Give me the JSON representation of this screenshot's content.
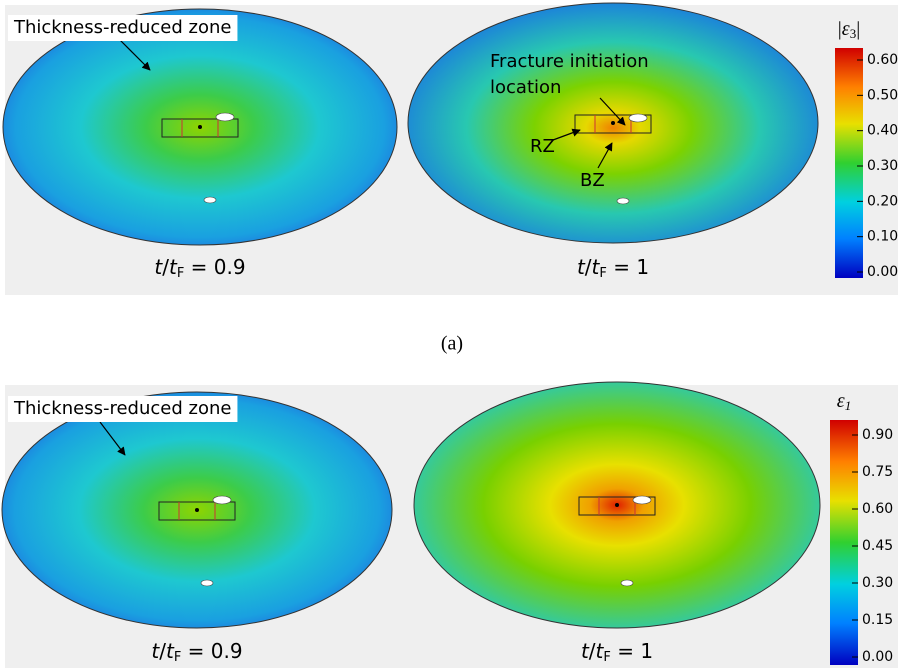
{
  "panels": [
    {
      "label": "(a)",
      "annotations": [
        "Thickness-reduced zone",
        "Fracture initiation",
        "location",
        "RZ",
        "BZ"
      ],
      "maps": [
        {
          "caption": [
            "t",
            "/",
            "t",
            "F",
            " = 0.9"
          ]
        },
        {
          "caption": [
            "t",
            "/",
            "t",
            "F",
            " = 1"
          ]
        }
      ],
      "colorbar": {
        "symbol": [
          "|",
          "ε",
          "3",
          "|"
        ],
        "ticks": [
          "0.60",
          "0.50",
          "0.40",
          "0.30",
          "0.20",
          "0.10",
          "0.00"
        ]
      }
    },
    {
      "annotations": [
        "Thickness-reduced zone"
      ],
      "maps": [
        {
          "caption": [
            "t",
            "/",
            "t",
            "F",
            " = 0.9"
          ]
        },
        {
          "caption": [
            "t",
            "/",
            "t",
            "F",
            " = 1"
          ]
        }
      ],
      "colorbar": {
        "symbol": [
          "ε",
          "1"
        ],
        "ticks": [
          "0.90",
          "0.75",
          "0.60",
          "0.45",
          "0.30",
          "0.15",
          "0.00"
        ]
      }
    }
  ]
}
